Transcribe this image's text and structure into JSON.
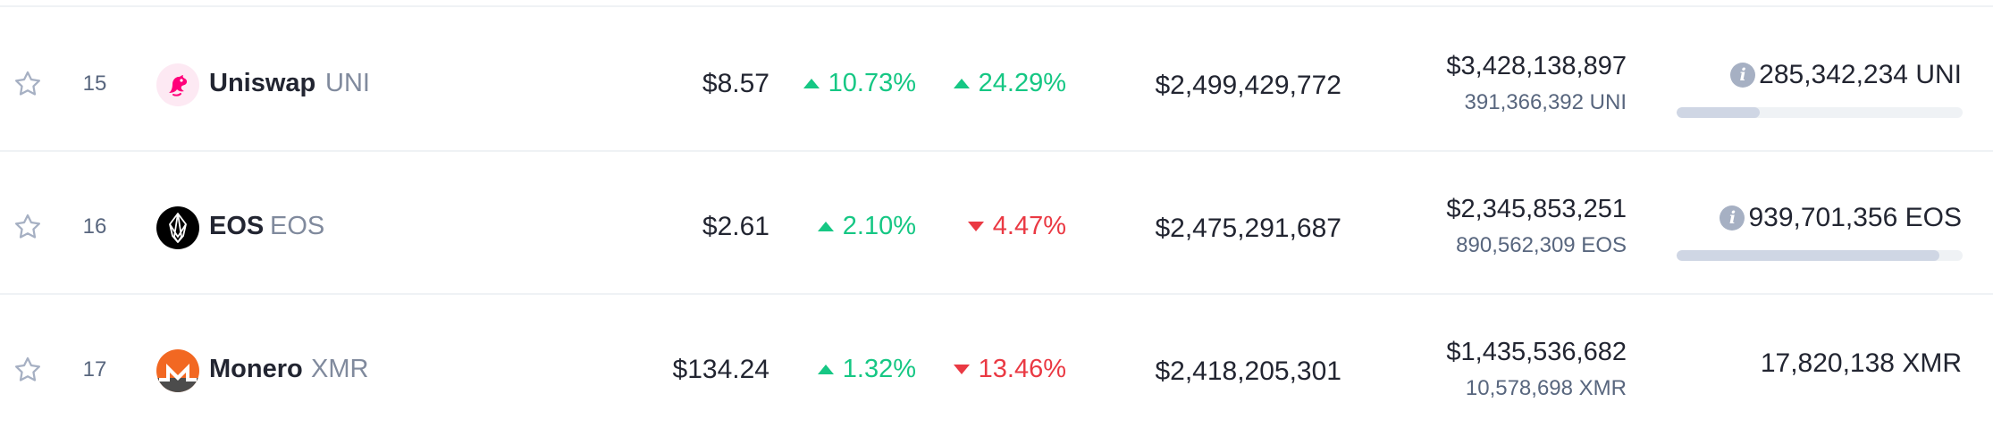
{
  "rows": [
    {
      "rank": "15",
      "name": "Uniswap",
      "symbol": "UNI",
      "logo_icon": "uniswap-unicorn-icon",
      "price": "$8.57",
      "change_24h": {
        "text": "10.73%",
        "direction": "up"
      },
      "change_7d": {
        "text": "24.29%",
        "direction": "up"
      },
      "market_cap": "$2,499,429,772",
      "volume_usd": "$3,428,138,897",
      "volume_coin": "391,366,392 UNI",
      "circulating_supply": "285,342,234 UNI",
      "has_supply_info": true,
      "supply_progress": 0.29
    },
    {
      "rank": "16",
      "name": "EOS",
      "symbol": "EOS",
      "logo_icon": "eos-logo-icon",
      "price": "$2.61",
      "change_24h": {
        "text": "2.10%",
        "direction": "up"
      },
      "change_7d": {
        "text": "4.47%",
        "direction": "down"
      },
      "market_cap": "$2,475,291,687",
      "volume_usd": "$2,345,853,251",
      "volume_coin": "890,562,309 EOS",
      "circulating_supply": "939,701,356 EOS",
      "has_supply_info": true,
      "supply_progress": 0.92
    },
    {
      "rank": "17",
      "name": "Monero",
      "symbol": "XMR",
      "logo_icon": "monero-logo-icon",
      "price": "$134.24",
      "change_24h": {
        "text": "1.32%",
        "direction": "up"
      },
      "change_7d": {
        "text": "13.46%",
        "direction": "down"
      },
      "market_cap": "$2,418,205,301",
      "volume_usd": "$1,435,536,682",
      "volume_coin": "10,578,698 XMR",
      "circulating_supply": "17,820,138 XMR",
      "has_supply_info": false,
      "supply_progress": null
    }
  ],
  "colors": {
    "up": "#16c784",
    "down": "#ea3943",
    "text": "#222531",
    "muted": "#58667e",
    "symbol": "#808a9d",
    "divider": "#eff2f5"
  }
}
